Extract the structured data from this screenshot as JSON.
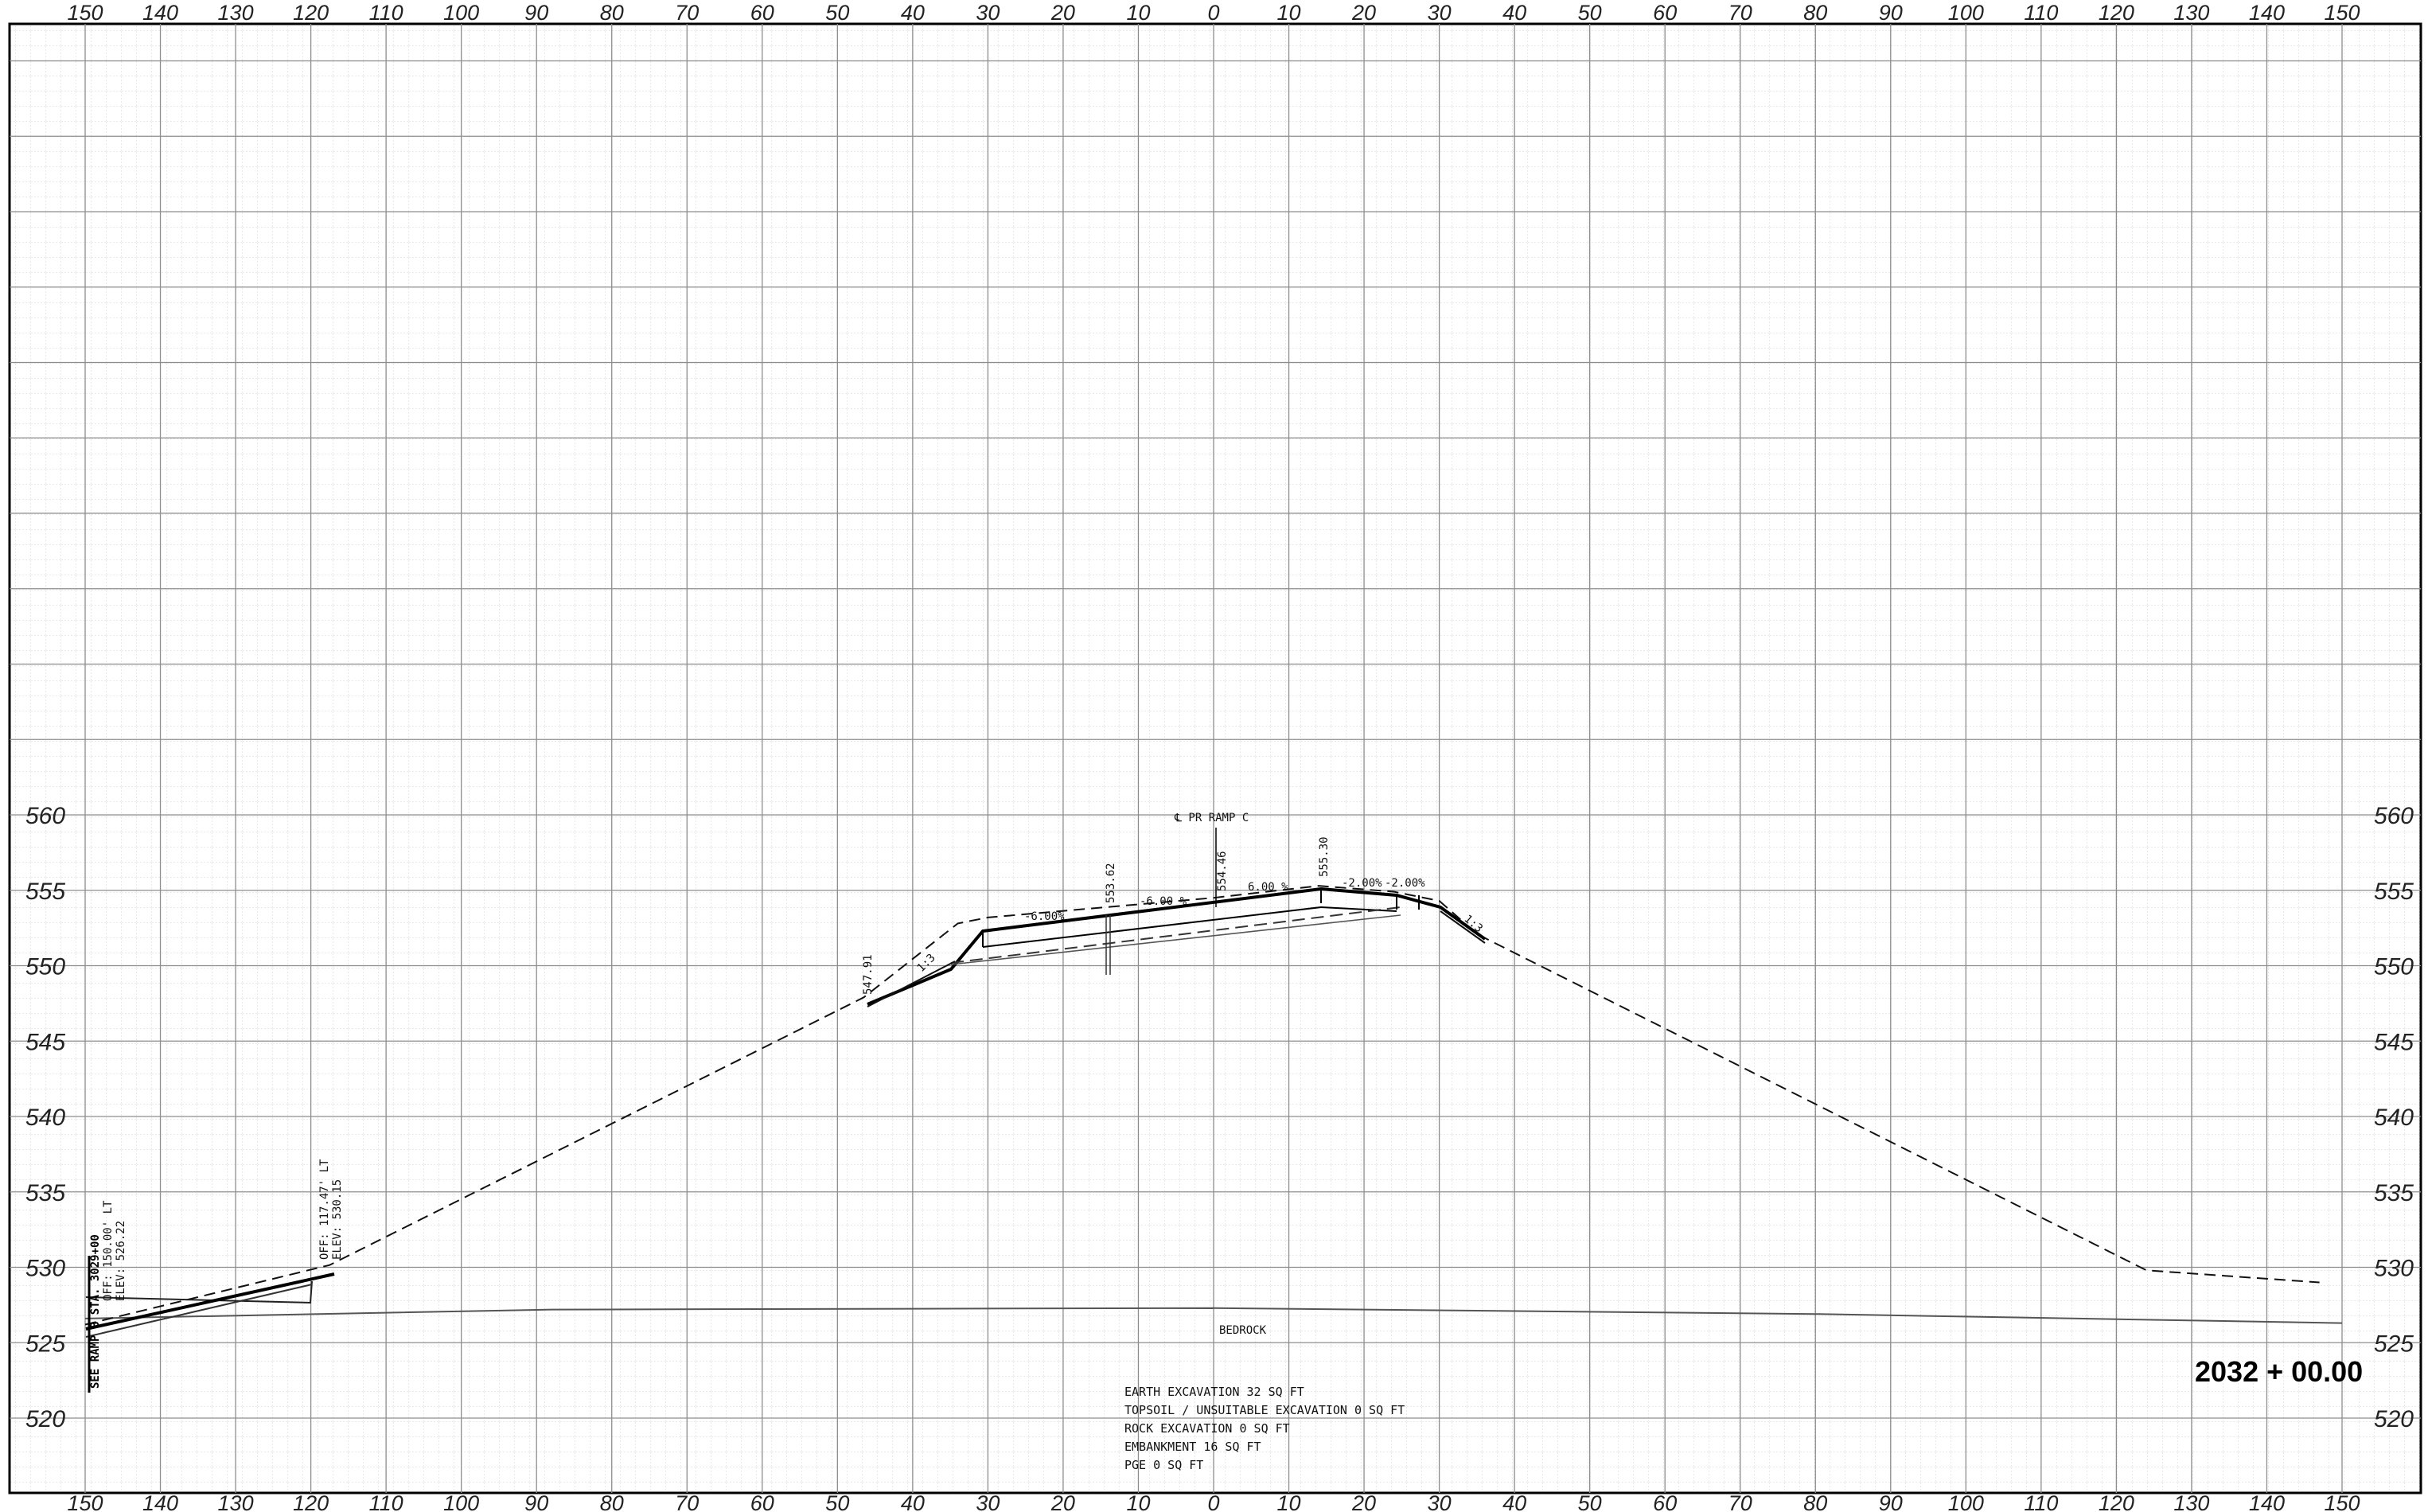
{
  "offset_ticks_top": [
    "150",
    "140",
    "130",
    "120",
    "110",
    "100",
    "90",
    "80",
    "70",
    "60",
    "50",
    "40",
    "30",
    "20",
    "10",
    "0",
    "10",
    "20",
    "30",
    "40",
    "50",
    "60",
    "70",
    "80",
    "90",
    "100",
    "110",
    "120",
    "130",
    "140",
    "150"
  ],
  "offset_ticks_bottom": [
    "150",
    "140",
    "130",
    "120",
    "110",
    "100",
    "90",
    "80",
    "70",
    "60",
    "50",
    "40",
    "30",
    "20",
    "10",
    "0",
    "10",
    "20",
    "30",
    "40",
    "50",
    "60",
    "70",
    "80",
    "90",
    "100",
    "110",
    "120",
    "130",
    "140",
    "150"
  ],
  "elevation_labels": [
    "560",
    "555",
    "550",
    "545",
    "540",
    "535",
    "530",
    "525",
    "520"
  ],
  "centerline_label": "℄ PR RAMP C",
  "slope_labels": {
    "left_outer": "-6.00%",
    "left_inner": "-6.00 %",
    "right_inner": "6.00 %",
    "shoulder_1": "-2.00%",
    "shoulder_2": "-2.00%",
    "left_fill_slope": "1:3",
    "right_fill_slope": "1:3"
  },
  "elevation_callouts": {
    "left_hinge": "547.91",
    "left_edge": "553.62",
    "centerline": "554.46",
    "right_edge": "555.30"
  },
  "left_point_annotation": {
    "offset": "OFF: 117.47' LT",
    "elevation": "ELEV: 530.15"
  },
  "see_ramp_note": {
    "title": "SEE RAMP B STA. 3029+00",
    "offset": "OFF: 150.00' LT",
    "elevation": "ELEV: 526.22"
  },
  "bedrock_label": "BEDROCK",
  "station_label": "2032 + 00.00",
  "quantities": [
    "EARTH EXCAVATION 32 SQ FT",
    "TOPSOIL / UNSUITABLE EXCAVATION 0 SQ FT",
    "ROCK EXCAVATION 0 SQ FT",
    "EMBANKMENT 16 SQ FT",
    "PGE 0 SQ FT"
  ],
  "chart_data": {
    "type": "line",
    "xlabel": "",
    "ylabel": "",
    "xlim": [
      -150,
      150
    ],
    "ylim": [
      517,
      615
    ],
    "series": [
      {
        "values": [
          [
            -150,
            526.2
          ],
          [
            -117.5,
            530.15
          ],
          [
            -46.5,
            547.9
          ],
          [
            -34,
            552.8
          ],
          [
            -30,
            553.2
          ],
          [
            0,
            554.5
          ],
          [
            14,
            555.3
          ],
          [
            24,
            554.9
          ],
          [
            30,
            554.3
          ],
          [
            35,
            552.1
          ],
          [
            124,
            529.8
          ],
          [
            147,
            529.0
          ]
        ]
      },
      {
        "values": [
          [
            -150,
            526.6
          ],
          [
            -88,
            527.2
          ],
          [
            0,
            527.3
          ],
          [
            80,
            526.9
          ],
          [
            150,
            526.3
          ]
        ]
      }
    ]
  }
}
